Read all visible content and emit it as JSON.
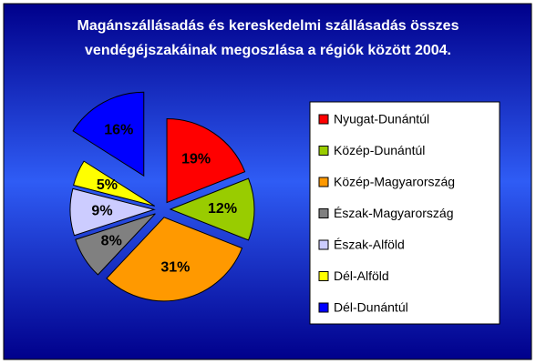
{
  "chart_data": {
    "type": "pie",
    "title": [
      "Magánszállásadás és kereskedelmi szállásadás összes",
      "vendégéjszakáinak megoszlása a régiók között 2004."
    ],
    "categories": [
      "Nyugat-Dunántúl",
      "Közép-Dunántúl",
      "Közép-Magyarország",
      "Észak-Magyarország",
      "Észak-Alföld",
      "Dél-Alföld",
      "Dél-Dunántúl"
    ],
    "values": [
      19,
      12,
      31,
      8,
      9,
      5,
      16
    ],
    "value_labels": [
      "19%",
      "12%",
      "31%",
      "8%",
      "9%",
      "5%",
      "16%"
    ],
    "colors": [
      "#ff0000",
      "#99cc00",
      "#ff9900",
      "#808080",
      "#ccccff",
      "#ffff00",
      "#0000ff"
    ],
    "legend": "right"
  }
}
